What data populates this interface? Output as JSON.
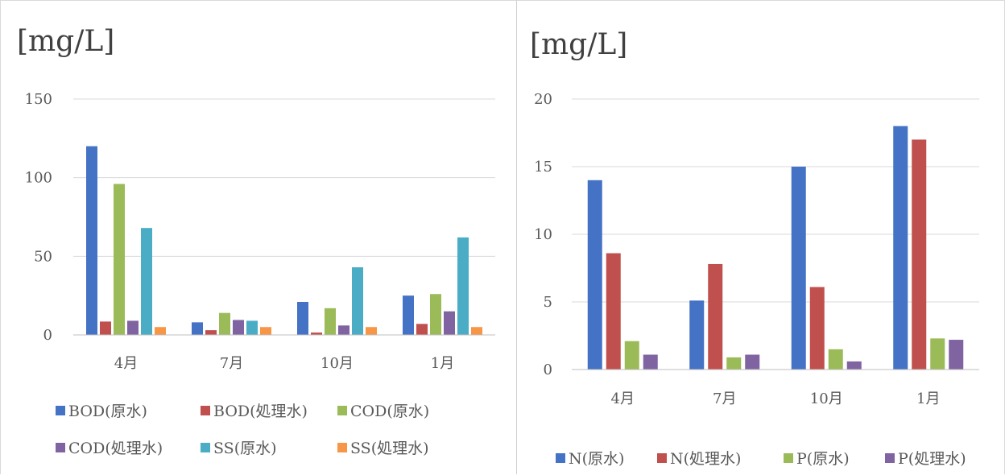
{
  "chart_data": [
    {
      "type": "bar",
      "unit_label": "[mg/L]",
      "categories": [
        "4月",
        "7月",
        "10月",
        "1月"
      ],
      "ylim": [
        0,
        150
      ],
      "yticks": [
        "0",
        "50",
        "100",
        "150"
      ],
      "grid": true,
      "legend_position": "bottom",
      "series": [
        {
          "name": "BOD(原水)",
          "color": "#4472c4",
          "values": [
            120,
            8,
            21,
            25
          ]
        },
        {
          "name": "BOD(処理水)",
          "color": "#c0504d",
          "values": [
            8.5,
            3,
            1.5,
            7
          ]
        },
        {
          "name": "COD(原水)",
          "color": "#9bbb59",
          "values": [
            96,
            14,
            17,
            26
          ]
        },
        {
          "name": "COD(処理水)",
          "color": "#8064a2",
          "values": [
            9,
            9.5,
            6,
            15
          ]
        },
        {
          "name": "SS(原水)",
          "color": "#4bacc6",
          "values": [
            68,
            9,
            43,
            62
          ]
        },
        {
          "name": "SS(処理水)",
          "color": "#f79646",
          "values": [
            5,
            5,
            5,
            5
          ]
        }
      ]
    },
    {
      "type": "bar",
      "unit_label": "[mg/L]",
      "categories": [
        "4月",
        "7月",
        "10月",
        "1月"
      ],
      "ylim": [
        0,
        20
      ],
      "yticks": [
        "0",
        "5",
        "10",
        "15",
        "20"
      ],
      "grid": true,
      "legend_position": "bottom",
      "series": [
        {
          "name": "N(原水)",
          "color": "#4472c4",
          "values": [
            14,
            5.1,
            15,
            18
          ]
        },
        {
          "name": "N(処理水)",
          "color": "#c0504d",
          "values": [
            8.6,
            7.8,
            6.1,
            17
          ]
        },
        {
          "name": "P(原水)",
          "color": "#9bbb59",
          "values": [
            2.1,
            0.9,
            1.5,
            2.3
          ]
        },
        {
          "name": "P(処理水)",
          "color": "#8064a2",
          "values": [
            1.1,
            1.1,
            0.6,
            2.2
          ]
        }
      ]
    }
  ]
}
